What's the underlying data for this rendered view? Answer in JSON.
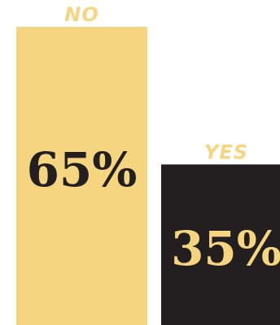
{
  "colors": {
    "no_bar": "#F5D57F",
    "yes_bar": "#231F20",
    "no_label": "#F5D57F",
    "yes_label": "#F5D57F",
    "no_value_text": "#231F20",
    "yes_value_text": "#F5D57F"
  },
  "chart_data": {
    "type": "bar",
    "categories": [
      "NO",
      "YES"
    ],
    "values": [
      65,
      35
    ],
    "value_labels": [
      "65%",
      "35%"
    ],
    "title": "",
    "xlabel": "",
    "ylabel": "",
    "ylim": [
      0,
      65
    ],
    "grid": false,
    "legend": "none"
  }
}
